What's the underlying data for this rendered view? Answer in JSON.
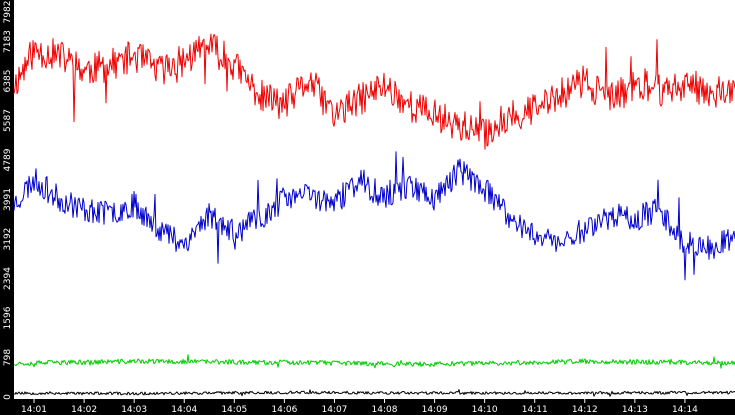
{
  "chart_data": {
    "type": "line",
    "title": "",
    "xlabel": "",
    "ylabel": "",
    "x_ticks": [
      "14:01",
      "14:02",
      "14:03",
      "14:04",
      "14:05",
      "14:06",
      "14:07",
      "14:08",
      "14:09",
      "14:10",
      "14:11",
      "14:12",
      "14:13",
      "14:14"
    ],
    "y_ticks": [
      "0",
      "798",
      "1596",
      "2394",
      "3192",
      "3991",
      "4789",
      "5587",
      "6385",
      "7183",
      "7982"
    ],
    "ylim": [
      0,
      7982
    ],
    "grid": false,
    "legend": "none",
    "time_range": [
      "14:00:36",
      "14:15:00"
    ],
    "series": [
      {
        "color": "#ee0000",
        "times": [
          "14:00:36",
          "14:01:00",
          "14:01:30",
          "14:02:00",
          "14:02:30",
          "14:03:00",
          "14:03:30",
          "14:04:00",
          "14:04:30",
          "14:05:00",
          "14:05:30",
          "14:06:00",
          "14:06:30",
          "14:07:00",
          "14:07:30",
          "14:08:00",
          "14:08:30",
          "14:09:00",
          "14:09:30",
          "14:10:00",
          "14:10:30",
          "14:11:00",
          "14:11:30",
          "14:12:00",
          "14:12:30",
          "14:13:00",
          "14:13:30",
          "14:14:00",
          "14:14:30",
          "14:15:00"
        ],
        "values": [
          6300,
          7000,
          6900,
          6600,
          6700,
          6900,
          6600,
          6800,
          7100,
          6700,
          6100,
          5900,
          6400,
          5700,
          6000,
          6300,
          5900,
          5700,
          5500,
          5300,
          5700,
          5800,
          6100,
          6400,
          6000,
          6300,
          6200,
          6300,
          6200,
          6100
        ],
        "noise": 330,
        "seed": 11
      },
      {
        "color": "#0000cc",
        "times": [
          "14:00:36",
          "14:01:00",
          "14:01:30",
          "14:02:00",
          "14:02:30",
          "14:03:00",
          "14:03:30",
          "14:04:00",
          "14:04:30",
          "14:05:00",
          "14:05:30",
          "14:06:00",
          "14:06:30",
          "14:07:00",
          "14:07:30",
          "14:08:00",
          "14:08:30",
          "14:09:00",
          "14:09:30",
          "14:10:00",
          "14:10:30",
          "14:11:00",
          "14:11:30",
          "14:12:00",
          "14:12:30",
          "14:13:00",
          "14:13:30",
          "14:14:00",
          "14:14:30",
          "14:15:00"
        ],
        "values": [
          3900,
          4400,
          4000,
          3800,
          3700,
          3900,
          3400,
          3100,
          3700,
          3300,
          3600,
          4000,
          4100,
          3900,
          4400,
          4000,
          4300,
          4000,
          4600,
          4200,
          3600,
          3300,
          3100,
          3400,
          3700,
          3600,
          3800,
          3100,
          3000,
          3200
        ],
        "noise": 260,
        "seed": 23
      },
      {
        "color": "#00cc00",
        "times": [
          "14:00:36",
          "14:03:00",
          "14:06:00",
          "14:09:00",
          "14:12:00",
          "14:15:00"
        ],
        "values": [
          680,
          720,
          700,
          660,
          720,
          690
        ],
        "noise": 50,
        "seed": 37
      },
      {
        "color": "#000000",
        "times": [
          "14:00:36",
          "14:03:00",
          "14:06:00",
          "14:09:00",
          "14:12:00",
          "14:15:00"
        ],
        "values": [
          80,
          70,
          90,
          80,
          80,
          90
        ],
        "noise": 30,
        "seed": 53
      }
    ]
  }
}
